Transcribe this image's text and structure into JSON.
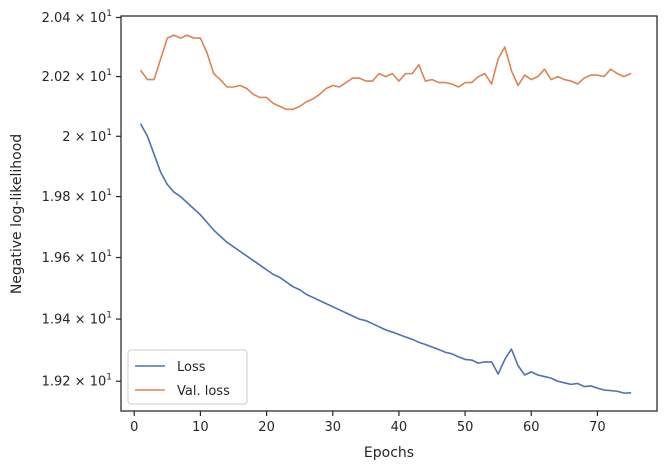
{
  "chart_data": {
    "type": "line",
    "xlabel": "Epochs",
    "ylabel": "Negative log-likelihood",
    "xlim": [
      -2,
      79
    ],
    "ylim": [
      19.105,
      20.405
    ],
    "yscale": "log",
    "grid": false,
    "legend_position": "lower-left",
    "x_ticks": [
      0,
      10,
      20,
      30,
      40,
      50,
      60,
      70
    ],
    "x_tick_labels": [
      "0",
      "10",
      "20",
      "30",
      "40",
      "50",
      "60",
      "70"
    ],
    "y_ticks": [
      {
        "value": 19.2,
        "mantissa": "1.92",
        "base": "10",
        "exponent": "1"
      },
      {
        "value": 19.4,
        "mantissa": "1.94",
        "base": "10",
        "exponent": "1"
      },
      {
        "value": 19.6,
        "mantissa": "1.96",
        "base": "10",
        "exponent": "1"
      },
      {
        "value": 19.8,
        "mantissa": "1.98",
        "base": "10",
        "exponent": "1"
      },
      {
        "value": 20.0,
        "mantissa": "2",
        "base": "10",
        "exponent": "1"
      },
      {
        "value": 20.2,
        "mantissa": "2.02",
        "base": "10",
        "exponent": "1"
      },
      {
        "value": 20.4,
        "mantissa": "2.04",
        "base": "10",
        "exponent": "1"
      }
    ],
    "times_sign": "×",
    "series": [
      {
        "name": "Loss",
        "color": "#4c72b0",
        "x": [
          1,
          2,
          3,
          4,
          5,
          6,
          7,
          8,
          9,
          10,
          11,
          12,
          13,
          14,
          15,
          16,
          17,
          18,
          19,
          20,
          21,
          22,
          23,
          24,
          25,
          26,
          27,
          28,
          29,
          30,
          31,
          32,
          33,
          34,
          35,
          36,
          37,
          38,
          39,
          40,
          41,
          42,
          43,
          44,
          45,
          46,
          47,
          48,
          49,
          50,
          51,
          52,
          53,
          54,
          55,
          56,
          57,
          58,
          59,
          60,
          61,
          62,
          63,
          64,
          65,
          66,
          67,
          68,
          69,
          70,
          71,
          72,
          73,
          74,
          75
        ],
        "values": [
          20.04,
          20.0,
          19.94,
          19.88,
          19.84,
          19.815,
          19.8,
          19.78,
          19.76,
          19.74,
          19.715,
          19.69,
          19.67,
          19.65,
          19.635,
          19.62,
          19.605,
          19.59,
          19.575,
          19.56,
          19.545,
          19.535,
          19.52,
          19.505,
          19.495,
          19.48,
          19.47,
          19.46,
          19.45,
          19.44,
          19.43,
          19.42,
          19.41,
          19.4,
          19.395,
          19.385,
          19.375,
          19.365,
          19.358,
          19.35,
          19.342,
          19.335,
          19.325,
          19.318,
          19.31,
          19.302,
          19.293,
          19.288,
          19.278,
          19.27,
          19.268,
          19.258,
          19.262,
          19.262,
          19.223,
          19.27,
          19.303,
          19.25,
          19.22,
          19.23,
          19.22,
          19.215,
          19.21,
          19.2,
          19.195,
          19.19,
          19.193,
          19.183,
          19.185,
          19.178,
          19.172,
          19.17,
          19.168,
          19.162,
          19.163
        ]
      },
      {
        "name": "Val. loss",
        "color": "#dd8452",
        "x": [
          1,
          2,
          3,
          4,
          5,
          6,
          7,
          8,
          9,
          10,
          11,
          12,
          13,
          14,
          15,
          16,
          17,
          18,
          19,
          20,
          21,
          22,
          23,
          24,
          25,
          26,
          27,
          28,
          29,
          30,
          31,
          32,
          33,
          34,
          35,
          36,
          37,
          38,
          39,
          40,
          41,
          42,
          43,
          44,
          45,
          46,
          47,
          48,
          49,
          50,
          51,
          52,
          53,
          54,
          55,
          56,
          57,
          58,
          59,
          60,
          61,
          62,
          63,
          64,
          65,
          66,
          67,
          68,
          69,
          70,
          71,
          72,
          73,
          74,
          75
        ],
        "values": [
          20.22,
          20.19,
          20.19,
          20.26,
          20.33,
          20.34,
          20.33,
          20.34,
          20.33,
          20.33,
          20.28,
          20.21,
          20.19,
          20.165,
          20.165,
          20.17,
          20.16,
          20.14,
          20.13,
          20.13,
          20.11,
          20.1,
          20.09,
          20.09,
          20.1,
          20.115,
          20.125,
          20.14,
          20.16,
          20.17,
          20.165,
          20.18,
          20.195,
          20.195,
          20.185,
          20.185,
          20.21,
          20.2,
          20.21,
          20.185,
          20.21,
          20.21,
          20.24,
          20.185,
          20.19,
          20.18,
          20.18,
          20.175,
          20.165,
          20.18,
          20.18,
          20.2,
          20.21,
          20.175,
          20.26,
          20.3,
          20.22,
          20.17,
          20.205,
          20.19,
          20.2,
          20.225,
          20.19,
          20.2,
          20.19,
          20.185,
          20.175,
          20.195,
          20.205,
          20.205,
          20.2,
          20.225,
          20.21,
          20.2,
          20.21
        ]
      }
    ]
  }
}
